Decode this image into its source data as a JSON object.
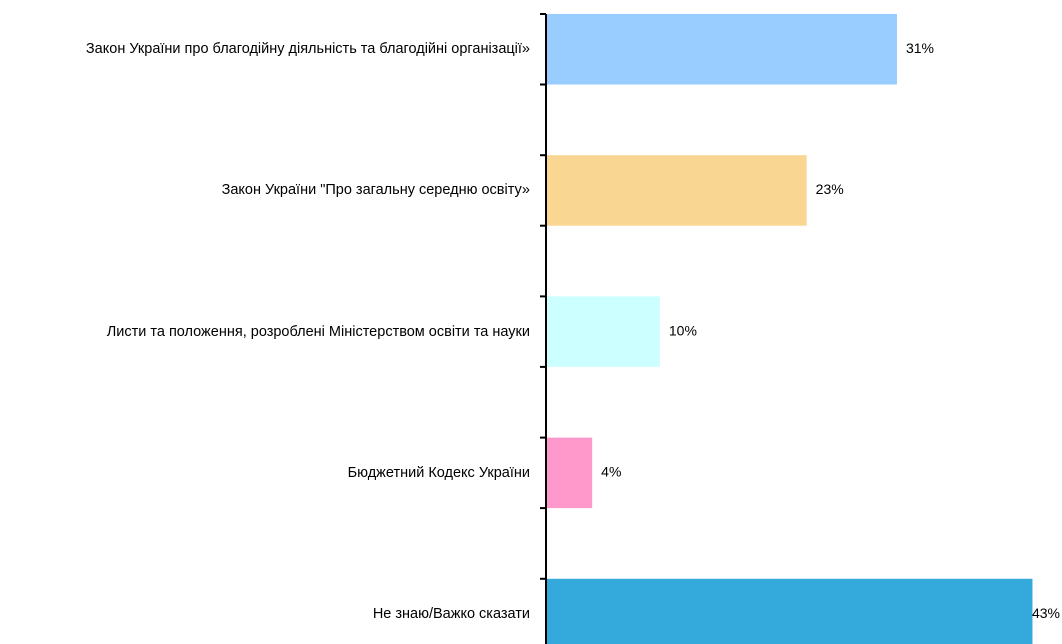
{
  "chart_data": {
    "type": "bar",
    "orientation": "horizontal",
    "categories": [
      "Закон України про благодійну діяльність та благодійні організації»",
      "Закон України \"Про загальну середню освіту»",
      "Листи та положення, розроблені Міністерством освіти та науки",
      "Бюджетний Кодекс України",
      "Не знаю/Важко сказати"
    ],
    "values": [
      31,
      23,
      10,
      4,
      43
    ],
    "value_labels": [
      "31%",
      "23%",
      "10%",
      "4%",
      "43%"
    ],
    "colors": [
      "#99ccff",
      "#f9d793",
      "#ccffff",
      "#ff99cc",
      "#33a9dc"
    ]
  }
}
